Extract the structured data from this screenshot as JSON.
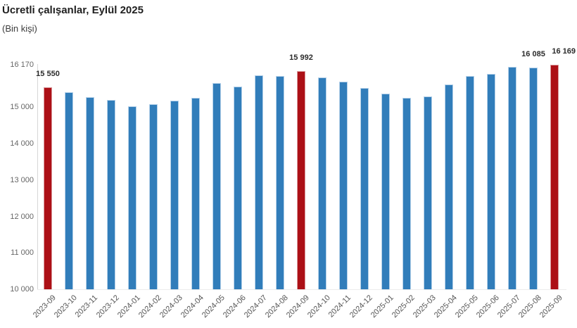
{
  "header": {
    "title": "Ücretli çalışanlar, Eylül 2025",
    "subtitle": "(Bin kişi)"
  },
  "chart_data": {
    "type": "bar",
    "title": "Ücretli çalışanlar, Eylül 2025",
    "subtitle": "(Bin kişi)",
    "xlabel": "",
    "ylabel": "Bin kişi",
    "grid": false,
    "legend": "none",
    "ylim": [
      10000,
      16170
    ],
    "categories": [
      "2023-09",
      "2023-10",
      "2023-11",
      "2023-12",
      "2024-01",
      "2024-02",
      "2024-03",
      "2024-04",
      "2024-05",
      "2024-06",
      "2024-07",
      "2024-08",
      "2024-09",
      "2024-10",
      "2024-11",
      "2024-12",
      "2025-01",
      "2025-02",
      "2025-03",
      "2025-04",
      "2025-05",
      "2025-06",
      "2025-07",
      "2025-08",
      "2025-09"
    ],
    "values": [
      15550,
      15420,
      15280,
      15200,
      15030,
      15090,
      15190,
      15260,
      15670,
      15570,
      15880,
      15870,
      15992,
      15830,
      15710,
      15540,
      15380,
      15270,
      15290,
      15630,
      15860,
      15910,
      16110,
      16085,
      16169
    ],
    "highlight_indices": [
      0,
      12,
      24
    ],
    "data_labels": [
      {
        "index": 0,
        "text": "15 550"
      },
      {
        "index": 12,
        "text": "15 992"
      },
      {
        "index": 23,
        "text": "16 085"
      },
      {
        "index": 24,
        "text": "16 169"
      }
    ],
    "y_ticks": [
      {
        "value": 16170,
        "label": "16 170"
      },
      {
        "value": 15000,
        "label": "15 000"
      },
      {
        "value": 14000,
        "label": "14 000"
      },
      {
        "value": 13000,
        "label": "13 000"
      },
      {
        "value": 12000,
        "label": "12 000"
      },
      {
        "value": 11000,
        "label": "11 000"
      },
      {
        "value": 10000,
        "label": "10 000"
      }
    ],
    "colors": {
      "bar": "#317dba",
      "bar_border": "#b5d1e9",
      "highlight": "#ac1016",
      "highlight_border": "#d9999c",
      "axis_line": "#d6d6d6",
      "base_line": "#ebebeb"
    }
  }
}
